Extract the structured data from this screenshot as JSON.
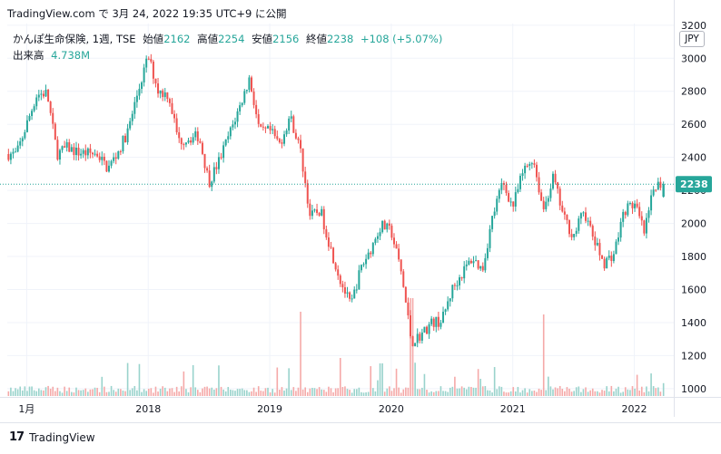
{
  "header": {
    "attribution": "TradingView.com で 3月 24, 2022 19:35 UTC+9 に公開"
  },
  "legend": {
    "symbol": "かんぽ生命保険, 1週, TSE",
    "open_label": "始値",
    "open": "2162",
    "high_label": "高値",
    "high": "2254",
    "low_label": "安値",
    "low": "2156",
    "close_label": "終値",
    "close": "2238",
    "change": "+108 (+5.07%)",
    "volume_label": "出来高",
    "volume": "4.738M"
  },
  "currency_button": "JPY",
  "footer": {
    "brand": "TradingView",
    "logo_text": "17"
  },
  "colors": {
    "up": "#26a69a",
    "down": "#ef5350",
    "up_volume": "#99d3cc",
    "down_volume": "#f5a9a8",
    "last_price_line": "#26a69a"
  },
  "chart_data": {
    "type": "candlestick",
    "interval": "1 week",
    "y_axis": {
      "position": "right",
      "ylim": [
        950,
        3210
      ],
      "ticks": [
        1000,
        1200,
        1400,
        1600,
        1800,
        2000,
        2200,
        2400,
        2600,
        2800,
        3000,
        3200
      ]
    },
    "x_axis": {
      "labels": [
        {
          "date": "2017-01",
          "label": "1月"
        },
        {
          "date": "2018-01",
          "label": "2018"
        },
        {
          "date": "2019-01",
          "label": "2019"
        },
        {
          "date": "2020-01",
          "label": "2020"
        },
        {
          "date": "2021-01",
          "label": "2021"
        },
        {
          "date": "2022-01",
          "label": "2022"
        }
      ]
    },
    "last_price": 2238,
    "last_candle": {
      "open": 2162,
      "high": 2254,
      "low": 2156,
      "close": 2238,
      "volume": 4738000
    },
    "close_path": [
      [
        "2016-12",
        2420
      ],
      [
        "2017-02",
        2780
      ],
      [
        "2017-03",
        2790
      ],
      [
        "2017-04",
        2420
      ],
      [
        "2017-05",
        2460
      ],
      [
        "2017-06",
        2430
      ],
      [
        "2017-08",
        2420
      ],
      [
        "2017-09",
        2330
      ],
      [
        "2017-10",
        2430
      ],
      [
        "2017-11",
        2560
      ],
      [
        "2017-12",
        2800
      ],
      [
        "2018-01",
        3010
      ],
      [
        "2018-02",
        2800
      ],
      [
        "2018-03",
        2780
      ],
      [
        "2018-04",
        2500
      ],
      [
        "2018-06",
        2530
      ],
      [
        "2018-07",
        2250
      ],
      [
        "2018-08",
        2380
      ],
      [
        "2018-10",
        2700
      ],
      [
        "2018-11",
        2880
      ],
      [
        "2018-12",
        2550
      ],
      [
        "2019-01",
        2560
      ],
      [
        "2019-02",
        2480
      ],
      [
        "2019-03",
        2650
      ],
      [
        "2019-04",
        2450
      ],
      [
        "2019-05",
        2040
      ],
      [
        "2019-06",
        2080
      ],
      [
        "2019-07",
        1850
      ],
      [
        "2019-08",
        1650
      ],
      [
        "2019-09",
        1500
      ],
      [
        "2019-10",
        1730
      ],
      [
        "2019-11",
        1850
      ],
      [
        "2019-12",
        1990
      ],
      [
        "2020-01",
        1950
      ],
      [
        "2020-02",
        1700
      ],
      [
        "2020-03",
        1280
      ],
      [
        "2020-04",
        1330
      ],
      [
        "2020-05",
        1400
      ],
      [
        "2020-06",
        1410
      ],
      [
        "2020-07",
        1600
      ],
      [
        "2020-08",
        1700
      ],
      [
        "2020-09",
        1790
      ],
      [
        "2020-10",
        1720
      ],
      [
        "2020-11",
        2040
      ],
      [
        "2020-12",
        2250
      ],
      [
        "2021-01",
        2100
      ],
      [
        "2021-02",
        2310
      ],
      [
        "2021-03",
        2400
      ],
      [
        "2021-04",
        2080
      ],
      [
        "2021-05",
        2280
      ],
      [
        "2021-06",
        2040
      ],
      [
        "2021-07",
        1920
      ],
      [
        "2021-08",
        2080
      ],
      [
        "2021-09",
        1900
      ],
      [
        "2021-10",
        1760
      ],
      [
        "2021-11",
        1820
      ],
      [
        "2021-12",
        2080
      ],
      [
        "2022-01",
        2120
      ],
      [
        "2022-02",
        1940
      ],
      [
        "2022-03",
        2238
      ]
    ],
    "volume_spikes_m": [
      [
        "2019-04",
        31
      ],
      [
        "2019-08",
        14
      ],
      [
        "2019-12",
        12
      ],
      [
        "2020-03",
        36
      ],
      [
        "2021-04",
        30
      ]
    ]
  }
}
